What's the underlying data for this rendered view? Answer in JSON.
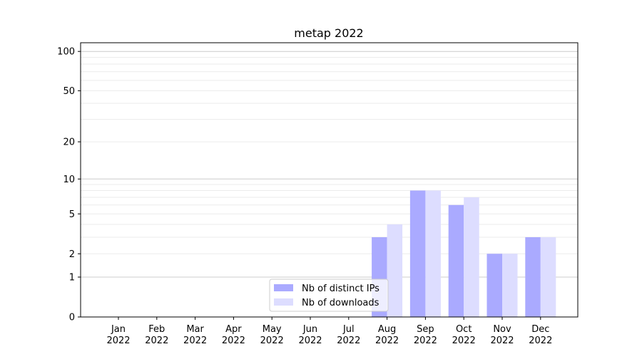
{
  "chart_data": {
    "type": "bar",
    "title": "metap 2022",
    "xlabel": "",
    "ylabel": "",
    "yscale": "symlog (log10(1+y))",
    "ylim": [
      0,
      116
    ],
    "yticks": [
      0,
      1,
      2,
      5,
      10,
      20,
      50,
      100
    ],
    "grid": true,
    "legend_placement": "lower-center",
    "categories": [
      "Jan\n2022",
      "Feb\n2022",
      "Mar\n2022",
      "Apr\n2022",
      "May\n2022",
      "Jun\n2022",
      "Jul\n2022",
      "Aug\n2022",
      "Sep\n2022",
      "Oct\n2022",
      "Nov\n2022",
      "Dec\n2022"
    ],
    "series": [
      {
        "name": "Nb of distinct IPs",
        "color": "#aaaaff",
        "values": [
          0,
          0,
          0,
          0,
          0,
          0,
          0,
          3,
          8,
          6,
          2,
          3
        ]
      },
      {
        "name": "Nb of downloads",
        "color": "#ddddff",
        "values": [
          0,
          0,
          0,
          0,
          0,
          0,
          0,
          4,
          8,
          7,
          2,
          3
        ]
      }
    ]
  }
}
